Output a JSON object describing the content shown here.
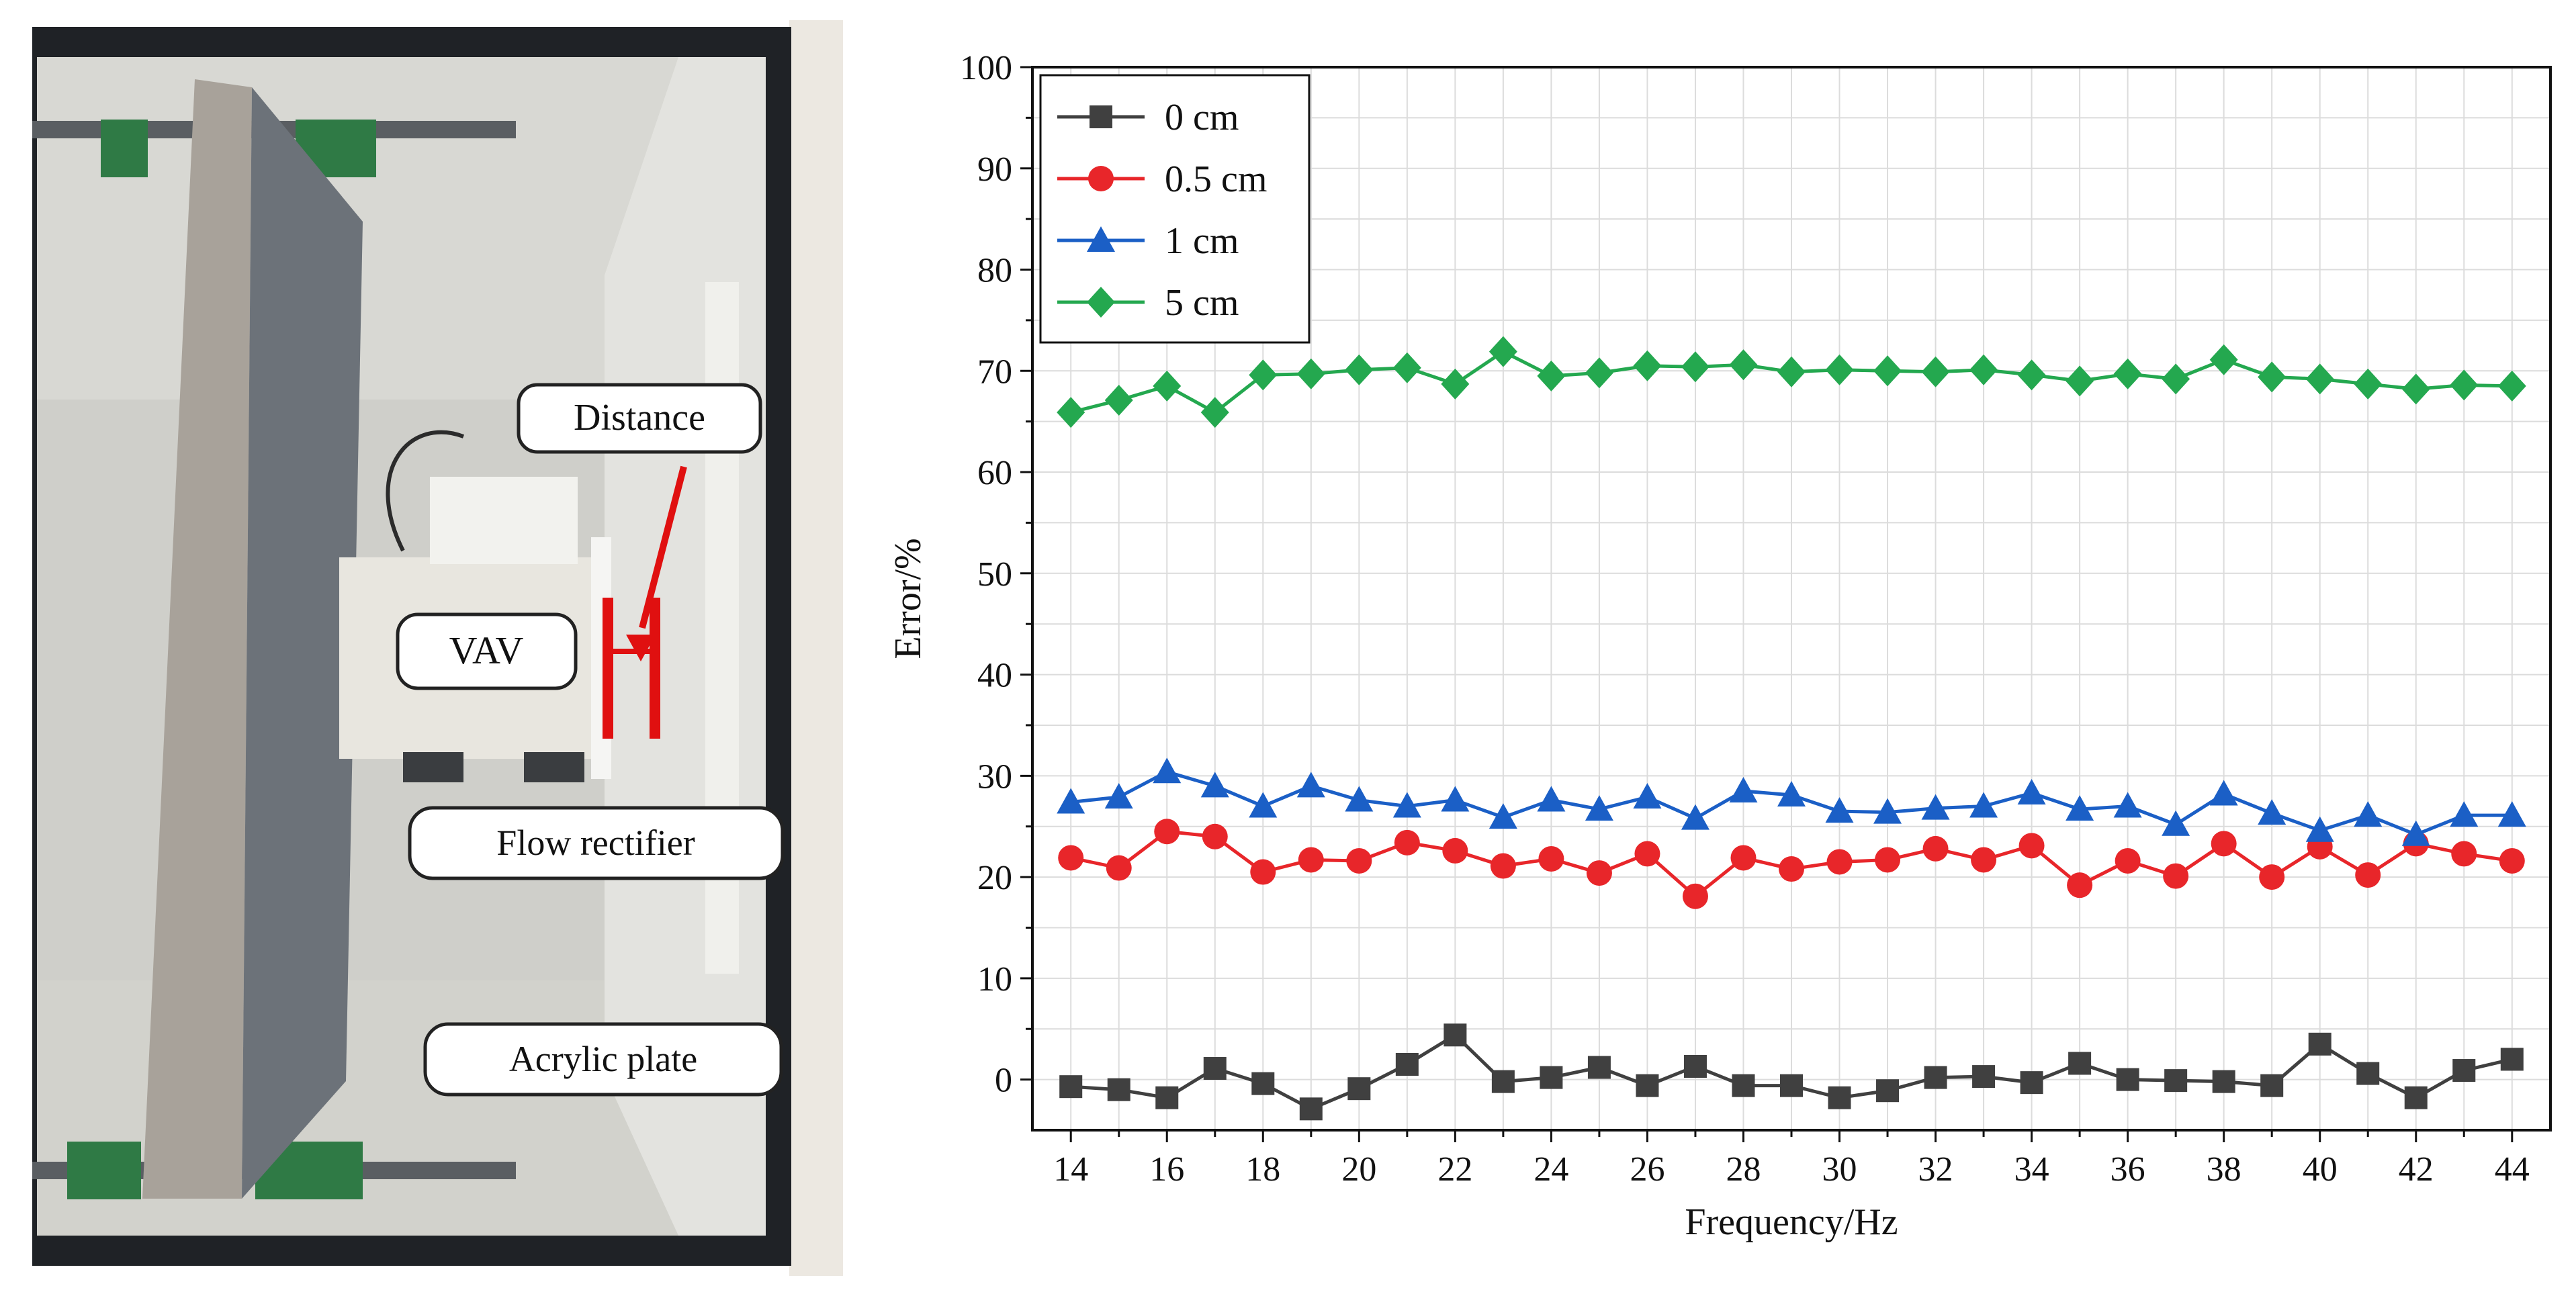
{
  "photo": {
    "labels": {
      "distance": "Distance",
      "vav": "VAV",
      "flow_rectifier": "Flow rectifier",
      "acrylic_plate": "Acrylic plate"
    },
    "colors": {
      "annotation": "#e01010"
    }
  },
  "chart_data": {
    "type": "line",
    "xlabel": "Frequency/Hz",
    "ylabel": "Error/%",
    "xlim": [
      13.2,
      44.8
    ],
    "ylim": [
      -5,
      100
    ],
    "xticks": [
      14,
      16,
      18,
      20,
      22,
      24,
      26,
      28,
      30,
      32,
      34,
      36,
      38,
      40,
      42,
      44
    ],
    "yticks": [
      0,
      10,
      20,
      30,
      40,
      50,
      60,
      70,
      80,
      90,
      100
    ],
    "grid": true,
    "legend_position": "top-left",
    "x": [
      14,
      15,
      16,
      17,
      18,
      19,
      20,
      21,
      22,
      23,
      24,
      25,
      26,
      27,
      28,
      29,
      30,
      31,
      32,
      33,
      34,
      35,
      36,
      37,
      38,
      39,
      40,
      41,
      42,
      43,
      44
    ],
    "series": [
      {
        "name": "0 cm",
        "color": "#404040",
        "marker": "square",
        "values": [
          -0.7,
          -1.0,
          -1.8,
          1.1,
          -0.4,
          -2.9,
          -0.9,
          1.5,
          4.4,
          -0.2,
          0.2,
          1.2,
          -0.6,
          1.3,
          -0.6,
          -0.6,
          -1.8,
          -1.1,
          0.2,
          0.3,
          -0.3,
          1.6,
          0.0,
          -0.1,
          -0.2,
          -0.6,
          3.5,
          0.6,
          -1.8,
          0.9,
          2.0
        ]
      },
      {
        "name": "0.5 cm",
        "color": "#e8262a",
        "marker": "circle",
        "values": [
          21.9,
          20.9,
          24.5,
          24.0,
          20.5,
          21.7,
          21.6,
          23.4,
          22.6,
          21.1,
          21.8,
          20.4,
          22.3,
          18.1,
          21.9,
          20.8,
          21.5,
          21.7,
          22.8,
          21.7,
          23.1,
          19.2,
          21.6,
          20.1,
          23.3,
          20.0,
          23.0,
          20.2,
          23.3,
          22.3,
          21.6
        ]
      },
      {
        "name": "1 cm",
        "color": "#1b5fc6",
        "marker": "triangle",
        "values": [
          27.4,
          27.9,
          30.4,
          29.0,
          27.0,
          29.0,
          27.6,
          27.0,
          27.6,
          25.9,
          27.6,
          26.7,
          27.9,
          25.8,
          28.5,
          28.1,
          26.5,
          26.4,
          26.8,
          27.0,
          28.3,
          26.7,
          27.0,
          25.2,
          28.2,
          26.3,
          24.6,
          26.1,
          24.2,
          26.1,
          26.1
        ]
      },
      {
        "name": "5 cm",
        "color": "#24a84f",
        "marker": "diamond",
        "values": [
          65.9,
          67.1,
          68.5,
          65.9,
          69.6,
          69.7,
          70.1,
          70.3,
          68.7,
          71.9,
          69.5,
          69.8,
          70.5,
          70.4,
          70.6,
          69.9,
          70.1,
          70.0,
          69.9,
          70.1,
          69.6,
          69.0,
          69.7,
          69.2,
          71.1,
          69.4,
          69.2,
          68.7,
          68.2,
          68.6,
          68.5
        ]
      }
    ]
  }
}
